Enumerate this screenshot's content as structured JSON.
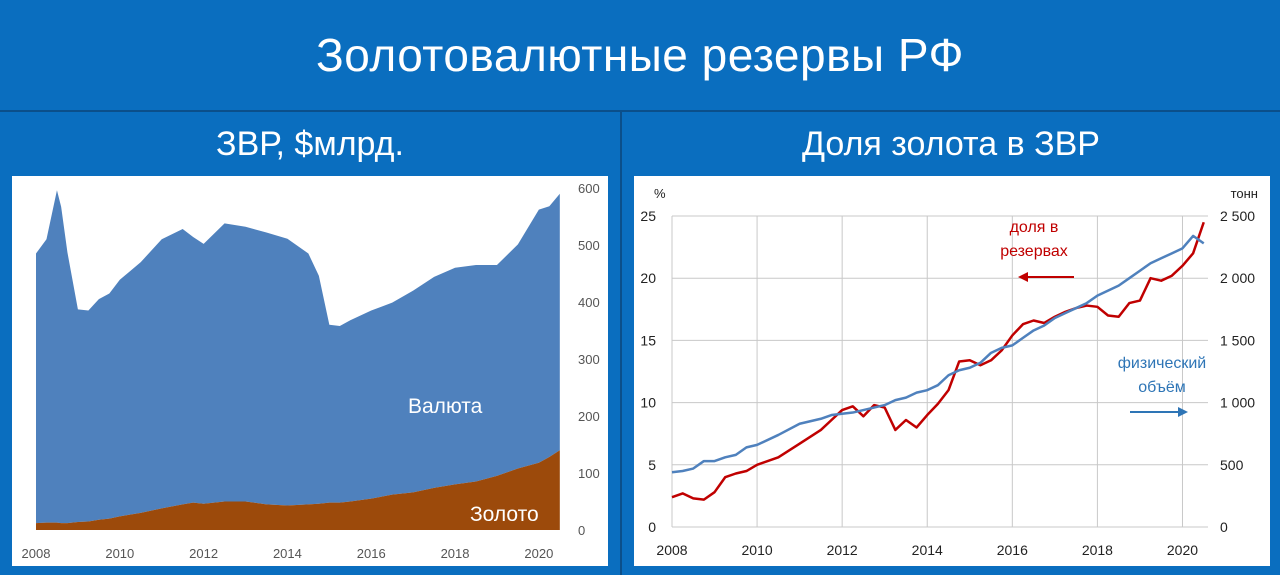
{
  "title": "Золотовалютные резервы РФ",
  "left_panel": {
    "heading": "ЗВР, $млрд."
  },
  "right_panel": {
    "heading": "Доля золота в ЗВР"
  },
  "chart_data": [
    {
      "type": "area",
      "stacked": true,
      "x": [
        2008.0,
        2008.25,
        2008.5,
        2008.6,
        2008.75,
        2009.0,
        2009.25,
        2009.5,
        2009.75,
        2010.0,
        2010.5,
        2011.0,
        2011.5,
        2011.75,
        2012.0,
        2012.5,
        2013.0,
        2013.5,
        2014.0,
        2014.5,
        2014.75,
        2015.0,
        2015.25,
        2015.5,
        2016.0,
        2016.5,
        2017.0,
        2017.5,
        2018.0,
        2018.5,
        2019.0,
        2019.5,
        2020.0,
        2020.25,
        2020.5
      ],
      "series": [
        {
          "name": "Золото",
          "color": "#9c4a0b",
          "values": [
            12,
            13,
            13,
            12,
            12,
            14,
            15,
            18,
            20,
            24,
            30,
            38,
            45,
            48,
            46,
            50,
            50,
            45,
            43,
            45,
            46,
            48,
            48,
            50,
            55,
            62,
            66,
            74,
            80,
            85,
            95,
            108,
            118,
            128,
            140
          ]
        },
        {
          "name": "Валюта",
          "color": "#4f81bd",
          "values": [
            473,
            497,
            583,
            555,
            475,
            373,
            370,
            387,
            395,
            415,
            440,
            472,
            483,
            466,
            456,
            488,
            482,
            477,
            468,
            440,
            400,
            312,
            310,
            318,
            330,
            337,
            354,
            370,
            380,
            380,
            370,
            393,
            444,
            440,
            450
          ]
        }
      ],
      "ylim": [
        0,
        600
      ],
      "xlim": [
        2008,
        2020.6
      ],
      "yticks": [
        "0",
        "100",
        "200",
        "300",
        "400",
        "500",
        "600"
      ],
      "xticks": [
        "2008",
        "2010",
        "2012",
        "2014",
        "2016",
        "2018",
        "2020"
      ],
      "annotations": [
        "Валюта",
        "Золото"
      ]
    },
    {
      "type": "line",
      "x": [
        2008.0,
        2008.25,
        2008.5,
        2008.75,
        2009.0,
        2009.25,
        2009.5,
        2009.75,
        2010.0,
        2010.5,
        2011.0,
        2011.5,
        2011.75,
        2012.0,
        2012.25,
        2012.5,
        2012.75,
        2013.0,
        2013.25,
        2013.5,
        2013.75,
        2014.0,
        2014.25,
        2014.5,
        2014.75,
        2015.0,
        2015.25,
        2015.5,
        2015.75,
        2016.0,
        2016.25,
        2016.5,
        2016.75,
        2017.0,
        2017.25,
        2017.5,
        2017.75,
        2018.0,
        2018.25,
        2018.5,
        2018.75,
        2019.0,
        2019.25,
        2019.5,
        2019.75,
        2020.0,
        2020.25,
        2020.5
      ],
      "series": [
        {
          "name": "доля в резервах",
          "axis": "left",
          "unit": "%",
          "color": "#c00000",
          "values": [
            2.4,
            2.7,
            2.3,
            2.2,
            2.8,
            4.0,
            4.3,
            4.5,
            5.0,
            5.6,
            6.7,
            7.8,
            8.6,
            9.4,
            9.7,
            8.9,
            9.8,
            9.6,
            7.8,
            8.6,
            8.0,
            9.0,
            9.9,
            11.0,
            13.3,
            13.4,
            13.0,
            13.4,
            14.2,
            15.4,
            16.3,
            16.6,
            16.4,
            16.9,
            17.3,
            17.6,
            17.8,
            17.7,
            17.0,
            16.9,
            18.0,
            18.2,
            20.0,
            19.8,
            20.2,
            21.0,
            22.0,
            24.5
          ]
        },
        {
          "name": "физический объём",
          "axis": "right",
          "unit": "тонн",
          "color": "#4f81bd",
          "values": [
            440,
            450,
            470,
            530,
            530,
            560,
            580,
            640,
            660,
            740,
            830,
            870,
            900,
            910,
            920,
            940,
            960,
            980,
            1020,
            1040,
            1080,
            1100,
            1140,
            1220,
            1260,
            1280,
            1320,
            1400,
            1440,
            1460,
            1520,
            1580,
            1620,
            1680,
            1720,
            1760,
            1800,
            1860,
            1900,
            1940,
            2000,
            2060,
            2120,
            2160,
            2200,
            2240,
            2340,
            2280
          ]
        }
      ],
      "ylim_left": [
        0,
        25
      ],
      "ylim_right": [
        0,
        2500
      ],
      "xlim": [
        2008,
        2020.6
      ],
      "left_axis_label": "%",
      "right_axis_label": "тонн",
      "yticks_left": [
        "0",
        "5",
        "10",
        "15",
        "20",
        "25"
      ],
      "yticks_right": [
        "0",
        "500",
        "1 000",
        "1 500",
        "2 000",
        "2 500"
      ],
      "xticks": [
        "2008",
        "2010",
        "2012",
        "2014",
        "2016",
        "2018",
        "2020"
      ],
      "annotations": {
        "share_line1": "доля в",
        "share_line2": "резервах",
        "phys_line1": "физический",
        "phys_line2": "объём"
      },
      "grid": true
    }
  ]
}
